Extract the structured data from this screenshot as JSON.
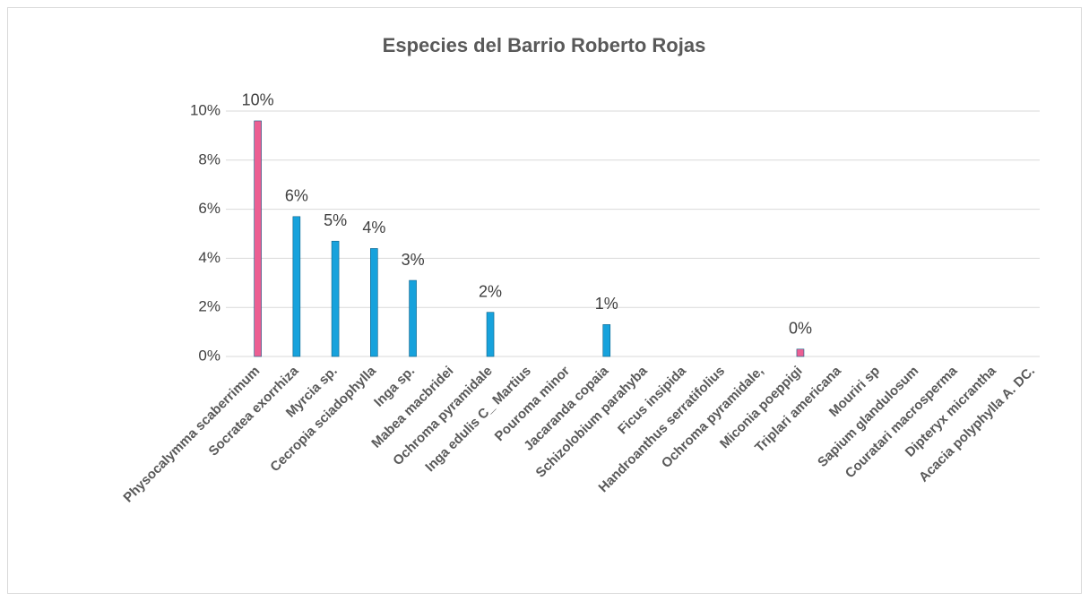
{
  "chart_data": {
    "type": "bar",
    "title": "Especies del Barrio Roberto Rojas",
    "categories": [
      "Physocalymma scaberrimum",
      "Socratea exorrhiza",
      "Myrcia sp.",
      "Cecropia sciadophylla",
      "Inga sp.",
      "Mabea macbridei",
      "Ochroma pyramidale",
      "Inga edulis C_ Martius",
      "Pouroma minor",
      "Jacaranda copaia",
      "Schizolobium parahyba",
      "Ficus insipida",
      "Handroanthus serratifolius",
      "Ochroma pyramidale,",
      "Miconia poeppigi",
      "Triplari americana",
      "Mouriri sp",
      "Sapium glandulosum",
      "Couratari macrosperma",
      "Dipteryx micrantha",
      "Acacia polyphylla A. DC."
    ],
    "values": [
      9.6,
      5.7,
      4.7,
      4.4,
      3.1,
      null,
      1.8,
      null,
      null,
      1.3,
      null,
      null,
      null,
      null,
      0.3,
      null,
      null,
      null,
      null,
      null,
      null
    ],
    "value_labels": [
      "10%",
      "6%",
      "5%",
      "4%",
      "3%",
      null,
      "2%",
      null,
      null,
      "1%",
      null,
      null,
      null,
      null,
      "0%",
      null,
      null,
      null,
      null,
      null,
      null
    ],
    "colors": [
      "#ec5f93",
      "#17a2dc",
      "#17a2dc",
      "#17a2dc",
      "#17a2dc",
      "#17a2dc",
      "#17a2dc",
      "#17a2dc",
      "#17a2dc",
      "#17a2dc",
      "#17a2dc",
      "#17a2dc",
      "#17a2dc",
      "#17a2dc",
      "#ec5f93",
      "#17a2dc",
      "#17a2dc",
      "#17a2dc",
      "#17a2dc",
      "#17a2dc",
      "#17a2dc"
    ],
    "ylim": [
      0,
      10
    ],
    "yticks": [
      {
        "value": 0,
        "label": "0%"
      },
      {
        "value": 2,
        "label": "2%"
      },
      {
        "value": 4,
        "label": "4%"
      },
      {
        "value": 6,
        "label": "6%"
      },
      {
        "value": 8,
        "label": "8%"
      },
      {
        "value": 10,
        "label": "10%"
      }
    ],
    "grid": true
  }
}
